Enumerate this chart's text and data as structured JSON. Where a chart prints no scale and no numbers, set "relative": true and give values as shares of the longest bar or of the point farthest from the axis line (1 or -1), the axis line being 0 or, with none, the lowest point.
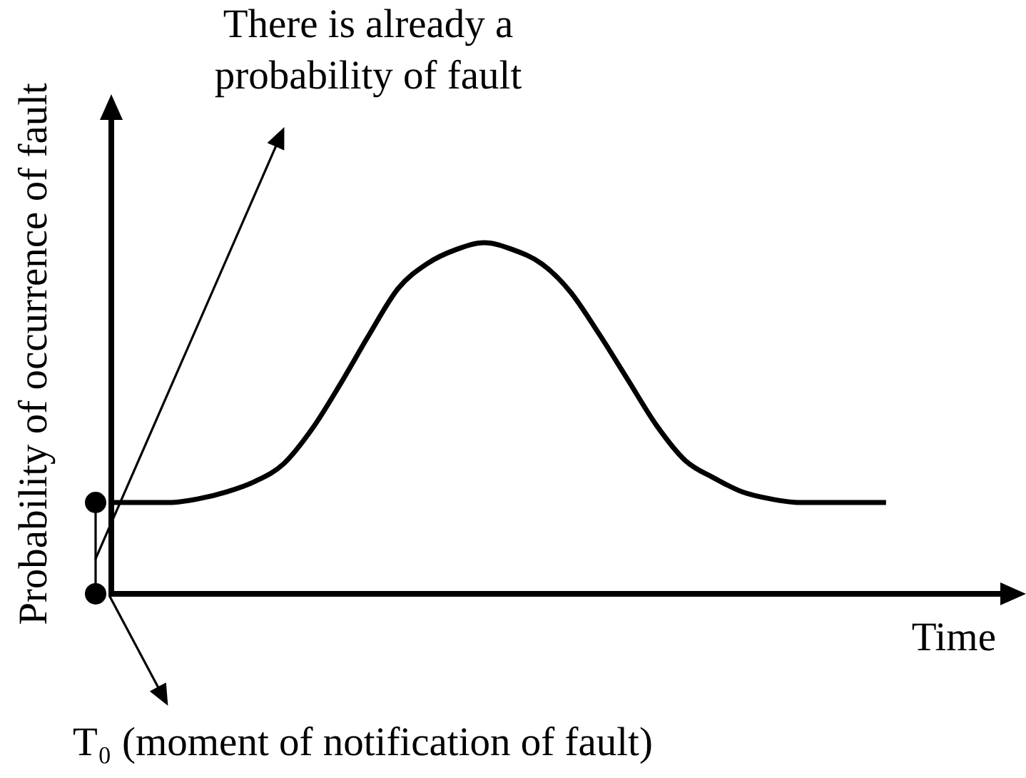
{
  "chart_data": {
    "type": "line",
    "relative": true,
    "ylabel": "Probability of occurrence of fault",
    "xlabel": "Time",
    "annotations": [
      "There is already a probability of fault",
      "T₀ (moment of notification of fault)"
    ],
    "categories": [
      null,
      null,
      null,
      null,
      null,
      null,
      null,
      null,
      null,
      null,
      null,
      null,
      null,
      null,
      null,
      null,
      null,
      null,
      null,
      null,
      null,
      null,
      null,
      null,
      null,
      null,
      null,
      null
    ],
    "series": [
      {
        "color": "#000000",
        "values": [
          0.26,
          0.26,
          0.26,
          0.27,
          0.29,
          0.32,
          0.37,
          0.47,
          0.6,
          0.74,
          0.87,
          0.94,
          0.98,
          1,
          0.98,
          0.94,
          0.86,
          0.74,
          0.61,
          0.48,
          0.38,
          0.33,
          0.29,
          0.27,
          0.26,
          0.26,
          0.26,
          0.26
        ]
      }
    ],
    "marker": "none",
    "line_style": "solid"
  }
}
